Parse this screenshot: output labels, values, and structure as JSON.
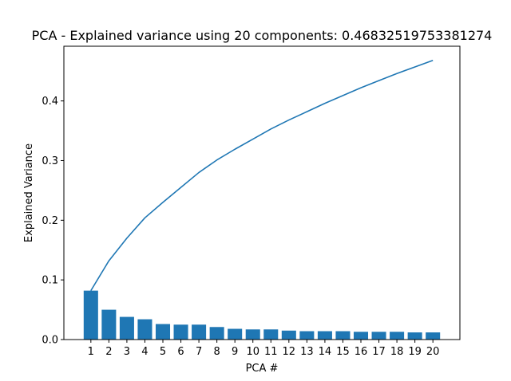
{
  "chart_data": {
    "type": "bar",
    "title": "PCA - Explained variance using 20 components: 0.46832519753381274",
    "xlabel": "PCA #",
    "ylabel": "Explained Variance",
    "categories": [
      "1",
      "2",
      "3",
      "4",
      "5",
      "6",
      "7",
      "8",
      "9",
      "10",
      "11",
      "12",
      "13",
      "14",
      "15",
      "16",
      "17",
      "18",
      "19",
      "20"
    ],
    "series": [
      {
        "type": "bar",
        "values": [
          0.082,
          0.05,
          0.038,
          0.034,
          0.026,
          0.025,
          0.025,
          0.021,
          0.018,
          0.017,
          0.017,
          0.015,
          0.014,
          0.014,
          0.014,
          0.013,
          0.013,
          0.013,
          0.012,
          0.012
        ]
      },
      {
        "type": "line",
        "values": [
          0.082,
          0.132,
          0.17,
          0.204,
          0.23,
          0.255,
          0.28,
          0.301,
          0.319,
          0.336,
          0.353,
          0.368,
          0.382,
          0.396,
          0.409,
          0.422,
          0.434,
          0.446,
          0.457,
          0.468
        ]
      }
    ],
    "ylim": [
      0,
      0.5
    ],
    "yticks": [
      0.0,
      0.1,
      0.2,
      0.3,
      0.4
    ],
    "ytick_labels": [
      "0.0",
      "0.1",
      "0.2",
      "0.3",
      "0.4"
    ],
    "grid": false,
    "colors": {
      "bar": "#1f77b4",
      "line": "#1f77b4",
      "axes": "#000000",
      "background": "#ffffff"
    }
  }
}
